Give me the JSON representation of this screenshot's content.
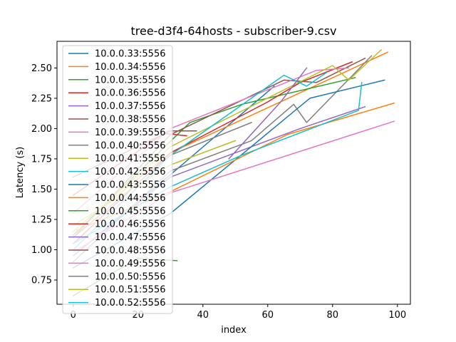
{
  "chart_data": {
    "type": "line",
    "title": "tree-d3f4-64hosts - subscriber-9.csv",
    "xlabel": "index",
    "ylabel": "Latency (s)",
    "xlim": [
      -5,
      104
    ],
    "ylim": [
      0.55,
      2.72
    ],
    "xticks": [
      0,
      20,
      40,
      60,
      80,
      100
    ],
    "yticks": [
      0.75,
      1.0,
      1.25,
      1.5,
      1.75,
      2.0,
      2.25,
      2.5
    ],
    "ytick_labels": [
      "0.75",
      "1.00",
      "1.25",
      "1.50",
      "1.75",
      "2.00",
      "2.25",
      "2.50"
    ],
    "grid": false,
    "legend_position": "upper-left",
    "series": [
      {
        "name": "10.0.0.33:5556",
        "color": "#1f77b4",
        "x": [
          0,
          30,
          62
        ],
        "y": [
          0.95,
          1.62,
          2.35
        ]
      },
      {
        "name": "10.0.0.34:5556",
        "color": "#ff7f0e",
        "x": [
          2,
          30,
          97
        ],
        "y": [
          1.2,
          1.8,
          2.63
        ]
      },
      {
        "name": "10.0.0.35:5556",
        "color": "#2ca02c",
        "x": [
          0,
          36,
          52,
          87
        ],
        "y": [
          1.12,
          2.05,
          2.2,
          2.42
        ]
      },
      {
        "name": "10.0.0.36:5556",
        "color": "#d62728",
        "x": [
          0,
          30,
          60,
          70,
          86
        ],
        "y": [
          1.05,
          1.8,
          2.22,
          2.38,
          2.55
        ]
      },
      {
        "name": "10.0.0.37:5556",
        "color": "#9467bd",
        "x": [
          0,
          30,
          70,
          90
        ],
        "y": [
          0.95,
          1.6,
          2.0,
          2.18
        ]
      },
      {
        "name": "10.0.0.38:5556",
        "color": "#8c564b",
        "x": [
          0,
          30,
          65,
          75,
          90
        ],
        "y": [
          1.1,
          1.95,
          2.4,
          2.38,
          2.58
        ]
      },
      {
        "name": "10.0.0.39:5556",
        "color": "#e377c2",
        "x": [
          0,
          30,
          75,
          85
        ],
        "y": [
          1.3,
          2.0,
          2.48,
          2.5
        ]
      },
      {
        "name": "10.0.0.40:5556",
        "color": "#7f7f7f",
        "x": [
          0,
          30,
          55,
          68,
          72,
          92
        ],
        "y": [
          0.9,
          1.65,
          1.9,
          2.2,
          2.05,
          2.6
        ]
      },
      {
        "name": "10.0.0.41:5556",
        "color": "#bcbd22",
        "x": [
          0,
          30,
          80,
          85,
          95
        ],
        "y": [
          1.15,
          1.85,
          2.52,
          2.4,
          2.65
        ]
      },
      {
        "name": "10.0.0.42:5556",
        "color": "#17becf",
        "x": [
          0,
          30,
          65,
          72,
          78
        ],
        "y": [
          1.0,
          1.78,
          2.44,
          2.35,
          2.46
        ]
      },
      {
        "name": "10.0.0.43:5556",
        "color": "#1f77b4",
        "x": [
          0,
          30,
          73,
          96
        ],
        "y": [
          0.85,
          1.3,
          2.25,
          2.4
        ]
      },
      {
        "name": "10.0.0.44:5556",
        "color": "#ff7f0e",
        "x": [
          1,
          30,
          66,
          99
        ],
        "y": [
          1.16,
          1.48,
          1.95,
          2.21
        ]
      },
      {
        "name": "10.0.0.45:5556",
        "color": "#2ca02c",
        "x": [
          0,
          20,
          32
        ],
        "y": [
          0.62,
          0.93,
          0.91
        ]
      },
      {
        "name": "10.0.0.46:5556",
        "color": "#d62728",
        "x": [
          0,
          28,
          35
        ],
        "y": [
          1.45,
          1.96,
          1.94
        ]
      },
      {
        "name": "10.0.0.47:5556",
        "color": "#9467bd",
        "x": [
          48,
          64,
          72
        ],
        "y": [
          1.75,
          2.22,
          2.5
        ]
      },
      {
        "name": "10.0.0.48:5556",
        "color": "#8c564b",
        "x": [
          0,
          30,
          38
        ],
        "y": [
          1.6,
          1.98,
          1.98
        ]
      },
      {
        "name": "10.0.0.49:5556",
        "color": "#e377c2",
        "x": [
          0,
          30,
          99
        ],
        "y": [
          0.98,
          1.47,
          2.06
        ]
      },
      {
        "name": "10.0.0.50:5556",
        "color": "#7f7f7f",
        "x": [
          0,
          30,
          55
        ],
        "y": [
          1.1,
          1.78,
          2.05
        ]
      },
      {
        "name": "10.0.0.51:5556",
        "color": "#bcbd22",
        "x": [
          0,
          30,
          50
        ],
        "y": [
          1.2,
          1.7,
          1.9
        ]
      },
      {
        "name": "10.0.0.52:5556",
        "color": "#17becf",
        "x": [
          0,
          30,
          52,
          88,
          89
        ],
        "y": [
          1.05,
          1.52,
          1.78,
          2.15,
          2.38
        ]
      }
    ]
  }
}
